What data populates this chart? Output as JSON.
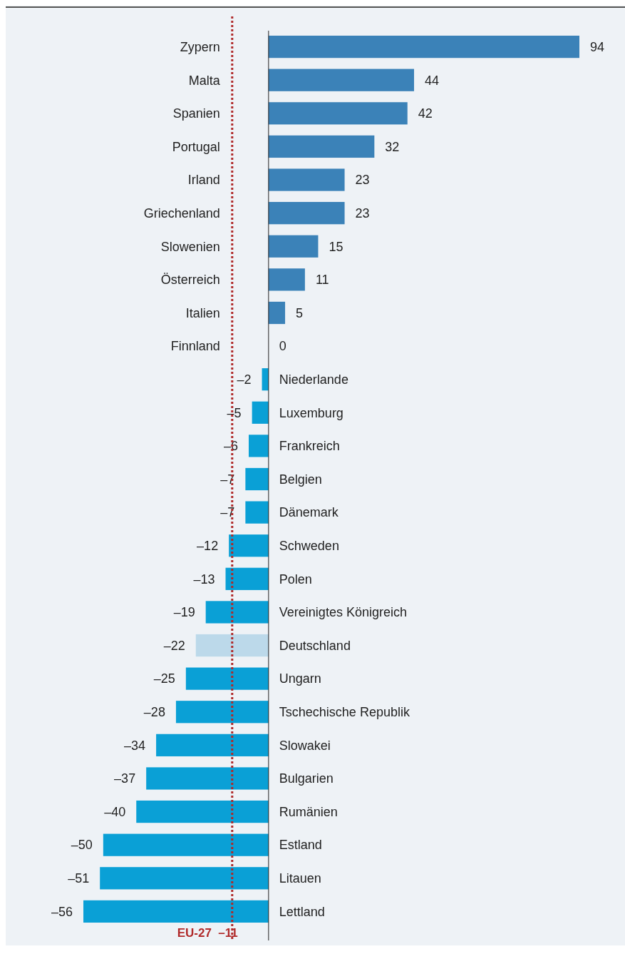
{
  "chart_data": {
    "type": "bar",
    "orientation": "horizontal",
    "categories": [
      "Zypern",
      "Malta",
      "Spanien",
      "Portugal",
      "Irland",
      "Griechenland",
      "Slowenien",
      "Österreich",
      "Italien",
      "Finnland",
      "Niederlande",
      "Luxemburg",
      "Frankreich",
      "Belgien",
      "Dänemark",
      "Schweden",
      "Polen",
      "Vereinigtes Königreich",
      "Deutschland",
      "Ungarn",
      "Tschechische Republik",
      "Slowakei",
      "Bulgarien",
      "Rumänien",
      "Estland",
      "Litauen",
      "Lettland"
    ],
    "values": [
      94,
      44,
      42,
      32,
      23,
      23,
      15,
      11,
      5,
      0,
      -2,
      -5,
      -6,
      -7,
      -7,
      -12,
      -13,
      -19,
      -22,
      -25,
      -28,
      -34,
      -37,
      -40,
      -50,
      -51,
      -56
    ],
    "value_labels": [
      "94",
      "44",
      "42",
      "32",
      "23",
      "23",
      "15",
      "11",
      "5",
      "0",
      "–2",
      "–5",
      "–6",
      "–7",
      "–7",
      "–12",
      "–13",
      "–19",
      "–22",
      "–25",
      "–28",
      "–34",
      "–37",
      "–40",
      "–50",
      "–51",
      "–56"
    ],
    "colors": [
      "#3b82b8",
      "#3b82b8",
      "#3b82b8",
      "#3b82b8",
      "#3b82b8",
      "#3b82b8",
      "#3b82b8",
      "#3b82b8",
      "#3b82b8",
      "#3b82b8",
      "#0aa0d6",
      "#0aa0d6",
      "#0aa0d6",
      "#0aa0d6",
      "#0aa0d6",
      "#0aa0d6",
      "#0aa0d6",
      "#0aa0d6",
      "#bcd9ea",
      "#0aa0d6",
      "#0aa0d6",
      "#0aa0d6",
      "#0aa0d6",
      "#0aa0d6",
      "#0aa0d6",
      "#0aa0d6",
      "#0aa0d6"
    ],
    "ref_lines": [
      {
        "axis": "x",
        "value": -11,
        "label": "EU-27  –11",
        "color": "#b02a2a",
        "line_style": "dotted"
      }
    ]
  }
}
